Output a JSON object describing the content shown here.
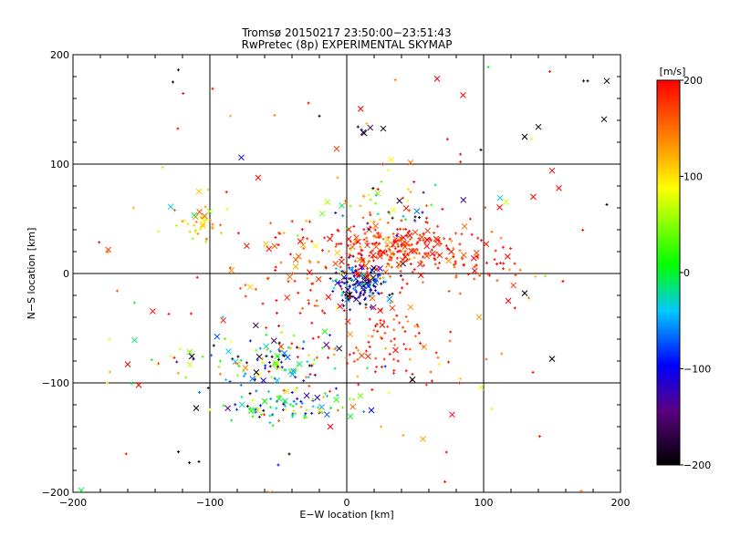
{
  "chart_data": {
    "type": "scatter",
    "title": "Tromsø 20150217 23:50:00−23:51:43",
    "subtitle": "RwPretec (8p) EXPERIMENTAL SKYMAP",
    "xlabel": "E−W location [km]",
    "ylabel": "N−S location [km]",
    "xlim": [
      -200,
      200
    ],
    "ylim": [
      -200,
      200
    ],
    "xticks": [
      -200,
      -100,
      0,
      100,
      200
    ],
    "yticks": [
      -200,
      -100,
      0,
      100,
      200
    ],
    "xtick_labels": [
      "−200",
      "−100",
      "0",
      "100",
      "200"
    ],
    "ytick_labels": [
      "−200",
      "−100",
      "0",
      "100",
      "200"
    ],
    "grid_lines_x": [
      -100,
      0,
      100
    ],
    "grid_lines_y": [
      -100,
      0,
      100
    ],
    "markers": [
      "cross (+)",
      "x"
    ],
    "clusters": [
      {
        "center": [
          8,
          -10
        ],
        "spread": [
          10,
          10
        ],
        "count": 160,
        "vmean": -120,
        "vstd": 70
      },
      {
        "center": [
          35,
          22
        ],
        "spread": [
          18,
          12
        ],
        "count": 200,
        "vmean": 180,
        "vstd": 30
      },
      {
        "center": [
          85,
          15
        ],
        "spread": [
          22,
          14
        ],
        "count": 90,
        "vmean": 185,
        "vstd": 25
      },
      {
        "center": [
          -55,
          -80
        ],
        "spread": [
          28,
          12
        ],
        "count": 130,
        "vmean": -40,
        "vstd": 110
      },
      {
        "center": [
          -40,
          -123
        ],
        "spread": [
          20,
          8
        ],
        "count": 90,
        "vmean": -50,
        "vstd": 110
      },
      {
        "center": [
          -105,
          45
        ],
        "spread": [
          8,
          8
        ],
        "count": 35,
        "vmean": 110,
        "vstd": 40
      },
      {
        "center": [
          -20,
          30
        ],
        "spread": [
          20,
          12
        ],
        "count": 50,
        "vmean": 175,
        "vstd": 50
      },
      {
        "center": [
          30,
          60
        ],
        "spread": [
          22,
          10
        ],
        "count": 55,
        "vmean": 60,
        "vstd": 160
      },
      {
        "center": [
          30,
          -60
        ],
        "spread": [
          28,
          20
        ],
        "count": 90,
        "vmean": 180,
        "vstd": 40
      },
      {
        "center": [
          -30,
          -10
        ],
        "spread": [
          30,
          20
        ],
        "count": 60,
        "vmean": 185,
        "vstd": 30
      },
      {
        "center": [
          12,
          128
        ],
        "spread": [
          6,
          4
        ],
        "count": 6,
        "vmean": -190,
        "vstd": 15
      },
      {
        "center": [
          -145,
          -90
        ],
        "spread": [
          10,
          8
        ],
        "count": 6,
        "vmean": 120,
        "vstd": 90
      },
      {
        "center": [
          0,
          0
        ],
        "spread": [
          130,
          110
        ],
        "count": 90,
        "vmean": 150,
        "vstd": 90
      }
    ],
    "outliers": [
      {
        "x": -123,
        "y": 186,
        "v": -200,
        "m": "+"
      },
      {
        "x": -127,
        "y": 175,
        "v": -200,
        "m": "+"
      },
      {
        "x": -98,
        "y": 169,
        "v": 200,
        "m": "+"
      },
      {
        "x": 66,
        "y": 178,
        "v": 200,
        "m": "x"
      },
      {
        "x": 85,
        "y": 163,
        "v": 200,
        "m": "x"
      },
      {
        "x": 173,
        "y": 176,
        "v": -200,
        "m": "+"
      },
      {
        "x": 176,
        "y": 176,
        "v": -200,
        "m": "+"
      },
      {
        "x": 190,
        "y": 176,
        "v": -200,
        "m": "x"
      },
      {
        "x": 188,
        "y": 141,
        "v": -200,
        "m": "x"
      },
      {
        "x": 140,
        "y": 134,
        "v": -200,
        "m": "x"
      },
      {
        "x": 130,
        "y": 125,
        "v": -200,
        "m": "x"
      },
      {
        "x": 98,
        "y": 113,
        "v": -200,
        "m": "+"
      },
      {
        "x": -85,
        "y": 144,
        "v": 120,
        "m": "+"
      },
      {
        "x": -20,
        "y": 144,
        "v": -200,
        "m": "+"
      },
      {
        "x": -77,
        "y": 106,
        "v": -100,
        "m": "x"
      },
      {
        "x": -108,
        "y": 75,
        "v": 110,
        "m": "x"
      },
      {
        "x": 150,
        "y": 94,
        "v": 200,
        "m": "x"
      },
      {
        "x": 155,
        "y": 78,
        "v": 200,
        "m": "x"
      },
      {
        "x": 190,
        "y": 63,
        "v": -200,
        "m": "+"
      },
      {
        "x": 112,
        "y": 69,
        "v": -40,
        "m": "x"
      },
      {
        "x": -155,
        "y": -61,
        "v": -20,
        "m": "x"
      },
      {
        "x": -160,
        "y": -83,
        "v": 200,
        "m": "x"
      },
      {
        "x": -152,
        "y": -102,
        "v": 200,
        "m": "x"
      },
      {
        "x": -175,
        "y": -100,
        "v": 110,
        "m": "+"
      },
      {
        "x": -126,
        "y": -77,
        "v": 200,
        "m": "+"
      },
      {
        "x": -130,
        "y": -37,
        "v": 200,
        "m": "+"
      },
      {
        "x": -110,
        "y": -123,
        "v": -200,
        "m": "x"
      },
      {
        "x": -123,
        "y": -163,
        "v": -200,
        "m": "+"
      },
      {
        "x": -115,
        "y": -173,
        "v": -200,
        "m": "+"
      },
      {
        "x": -108,
        "y": -172,
        "v": -200,
        "m": "+"
      },
      {
        "x": 150,
        "y": -78,
        "v": -200,
        "m": "x"
      },
      {
        "x": 98,
        "y": -104,
        "v": 80,
        "m": "x"
      },
      {
        "x": 77,
        "y": -129,
        "v": 200,
        "m": "x"
      },
      {
        "x": 48,
        "y": -97,
        "v": -200,
        "m": "x"
      },
      {
        "x": 18,
        "y": -125,
        "v": -100,
        "m": "x"
      },
      {
        "x": 10,
        "y": -112,
        "v": 40,
        "m": "x"
      },
      {
        "x": 130,
        "y": -18,
        "v": -200,
        "m": "x"
      },
      {
        "x": 118,
        "y": -25,
        "v": 200,
        "m": "x"
      },
      {
        "x": -12,
        "y": -140,
        "v": 200,
        "m": "x"
      },
      {
        "x": -50,
        "y": -175,
        "v": -100,
        "m": "+"
      },
      {
        "x": -42,
        "y": -165,
        "v": -200,
        "m": "+"
      },
      {
        "x": 25,
        "y": -140,
        "v": 120,
        "m": "+"
      }
    ]
  },
  "colorbar": {
    "unit_label": "[m/s]",
    "min": -200,
    "max": 200,
    "ticks": [
      200,
      100,
      0,
      -100,
      -200
    ],
    "tick_labels": [
      "200",
      "100",
      "0",
      "−100",
      "−200"
    ]
  },
  "colors": {
    "grid": "#000000",
    "background": "#ffffff",
    "colormap": [
      "#000000",
      "#5a0080",
      "#0000ff",
      "#00c8ff",
      "#00ff00",
      "#ffff00",
      "#ff8c00",
      "#ff0000"
    ]
  }
}
